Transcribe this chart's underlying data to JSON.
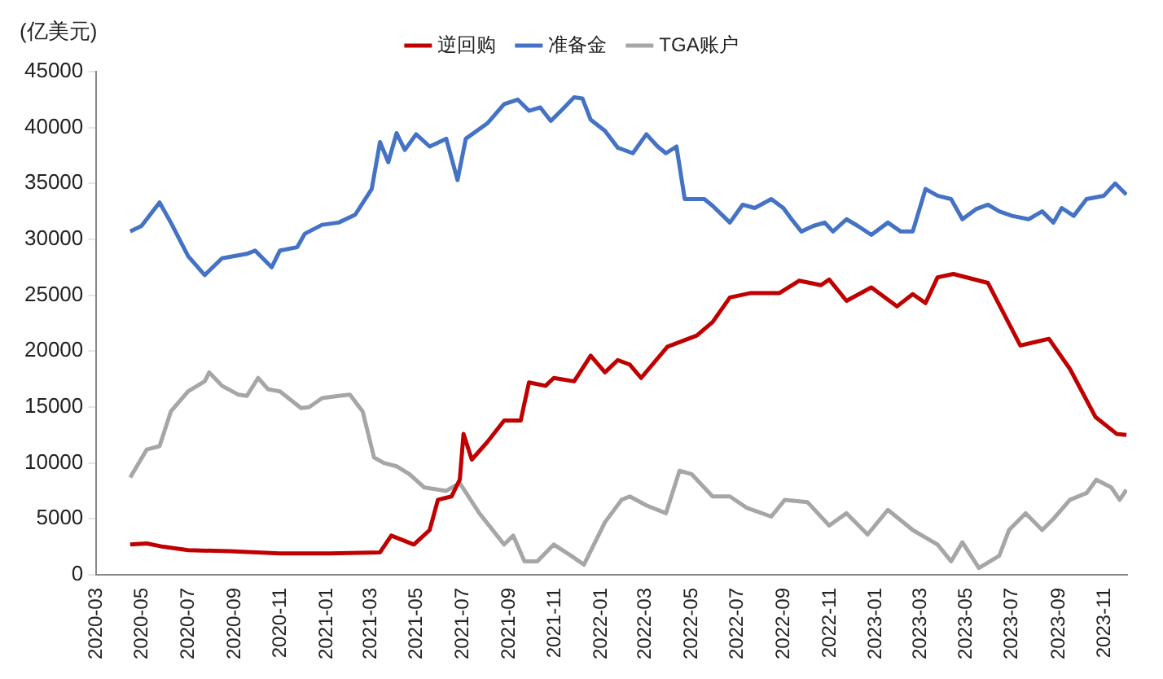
{
  "chart_data": {
    "type": "line",
    "ylabel": "(亿美元)",
    "legend": "top",
    "grid": false,
    "marker": "none",
    "line_style": "solid",
    "xlim": [
      "2020-03",
      "2023-12"
    ],
    "xticks": [
      "2020-03",
      "2020-05",
      "2020-07",
      "2020-09",
      "2020-11",
      "2021-01",
      "2021-03",
      "2021-05",
      "2021-07",
      "2021-09",
      "2021-11",
      "2022-01",
      "2022-03",
      "2022-05",
      "2022-07",
      "2022-09",
      "2022-11",
      "2023-01",
      "2023-03",
      "2023-05",
      "2023-07",
      "2023-09",
      "2023-11"
    ],
    "ylim": [
      0,
      45000
    ],
    "yticks": [
      0,
      5000,
      10000,
      15000,
      20000,
      25000,
      30000,
      35000,
      40000,
      45000
    ],
    "series": [
      {
        "name": "逆回购",
        "color": "#c00000",
        "x": [
          "2020-04-15",
          "2020-05-07",
          "2020-05-29",
          "2020-07-01",
          "2020-08-25",
          "2020-10-31",
          "2021-01-05",
          "2021-03-13",
          "2021-03-28",
          "2021-04-27",
          "2021-05-18",
          "2021-05-29",
          "2021-06-16",
          "2021-06-27",
          "2021-07-02",
          "2021-07-13",
          "2021-08-03",
          "2021-08-25",
          "2021-09-16",
          "2021-09-27",
          "2021-10-19",
          "2021-10-30",
          "2021-11-26",
          "2021-12-18",
          "2022-01-06",
          "2022-01-23",
          "2022-02-08",
          "2022-02-23",
          "2022-03-30",
          "2022-05-08",
          "2022-05-29",
          "2022-06-21",
          "2022-07-19",
          "2022-08-26",
          "2022-09-21",
          "2022-10-20",
          "2022-10-31",
          "2022-11-23",
          "2022-12-26",
          "2023-01-29",
          "2023-02-19",
          "2023-03-08",
          "2023-03-24",
          "2023-04-14",
          "2023-05-30",
          "2023-07-12",
          "2023-08-19",
          "2023-09-16",
          "2023-10-20",
          "2023-11-17",
          "2023-11-30"
        ],
        "values": [
          2700,
          2800,
          2500,
          2200,
          2100,
          1900,
          1900,
          2000,
          3500,
          2700,
          4000,
          6700,
          7000,
          8500,
          12600,
          10300,
          11900,
          13800,
          13800,
          17200,
          16900,
          17600,
          17300,
          19600,
          18100,
          19200,
          18800,
          17600,
          20400,
          21400,
          22600,
          24800,
          25200,
          25200,
          26300,
          25900,
          26400,
          24500,
          25700,
          24000,
          25100,
          24300,
          26600,
          26900,
          26100,
          20500,
          21100,
          18400,
          14100,
          12600,
          12500
        ]
      },
      {
        "name": "准备金",
        "color": "#4472c4",
        "x": [
          "2020-04-15",
          "2020-04-30",
          "2020-05-24",
          "2020-06-08",
          "2020-07-01",
          "2020-07-23",
          "2020-08-15",
          "2020-09-17",
          "2020-09-28",
          "2020-10-20",
          "2020-10-31",
          "2020-11-23",
          "2020-12-03",
          "2020-12-26",
          "2021-01-17",
          "2021-02-08",
          "2021-03-02",
          "2021-03-13",
          "2021-03-24",
          "2021-04-04",
          "2021-04-15",
          "2021-04-30",
          "2021-05-18",
          "2021-06-09",
          "2021-06-24",
          "2021-07-05",
          "2021-08-03",
          "2021-08-25",
          "2021-09-12",
          "2021-09-27",
          "2021-10-12",
          "2021-10-26",
          "2021-11-10",
          "2021-11-26",
          "2021-12-07",
          "2021-12-18",
          "2022-01-06",
          "2022-01-23",
          "2022-02-12",
          "2022-03-02",
          "2022-03-17",
          "2022-03-28",
          "2022-04-11",
          "2022-04-22",
          "2022-05-18",
          "2022-05-29",
          "2022-06-21",
          "2022-07-08",
          "2022-07-24",
          "2022-08-15",
          "2022-08-31",
          "2022-09-11",
          "2022-09-24",
          "2022-10-10",
          "2022-10-25",
          "2022-11-05",
          "2022-11-23",
          "2022-12-08",
          "2022-12-26",
          "2023-01-17",
          "2023-02-03",
          "2023-02-19",
          "2023-03-08",
          "2023-03-24",
          "2023-04-11",
          "2023-04-26",
          "2023-05-14",
          "2023-05-30",
          "2023-06-14",
          "2023-07-01",
          "2023-07-23",
          "2023-08-10",
          "2023-08-25",
          "2023-09-05",
          "2023-09-21",
          "2023-10-08",
          "2023-10-31",
          "2023-11-15",
          "2023-11-30"
        ],
        "values": [
          30700,
          31200,
          33300,
          31500,
          28500,
          26800,
          28300,
          28700,
          29000,
          27500,
          29000,
          29300,
          30500,
          31300,
          31500,
          32200,
          34500,
          38700,
          36900,
          39500,
          38000,
          39400,
          38300,
          39000,
          35300,
          39000,
          40400,
          42100,
          42500,
          41500,
          41800,
          40600,
          41600,
          42700,
          42600,
          40700,
          39700,
          38200,
          37700,
          39400,
          38300,
          37700,
          38300,
          33600,
          33600,
          33000,
          31500,
          33100,
          32800,
          33600,
          32800,
          31800,
          30700,
          31200,
          31500,
          30700,
          31800,
          31200,
          30400,
          31500,
          30700,
          30700,
          34500,
          33900,
          33600,
          31800,
          32700,
          33100,
          32500,
          32100,
          31800,
          32500,
          31500,
          32800,
          32100,
          33600,
          33900,
          35000,
          34000
        ]
      },
      {
        "name": "TGA账户",
        "color": "#a6a6a6",
        "x": [
          "2020-04-15",
          "2020-05-07",
          "2020-05-24",
          "2020-06-08",
          "2020-07-01",
          "2020-07-23",
          "2020-07-29",
          "2020-08-15",
          "2020-09-06",
          "2020-09-17",
          "2020-10-02",
          "2020-10-15",
          "2020-10-31",
          "2020-11-28",
          "2020-12-09",
          "2020-12-26",
          "2021-01-17",
          "2021-02-01",
          "2021-02-18",
          "2021-03-05",
          "2021-03-18",
          "2021-04-04",
          "2021-04-21",
          "2021-05-11",
          "2021-06-09",
          "2021-06-27",
          "2021-07-23",
          "2021-08-25",
          "2021-09-06",
          "2021-09-21",
          "2021-10-08",
          "2021-10-30",
          "2021-11-22",
          "2021-12-09",
          "2022-01-06",
          "2022-01-28",
          "2022-02-08",
          "2022-03-02",
          "2022-03-28",
          "2022-04-15",
          "2022-05-01",
          "2022-05-29",
          "2022-06-21",
          "2022-07-13",
          "2022-08-15",
          "2022-09-02",
          "2022-10-02",
          "2022-10-31",
          "2022-11-23",
          "2022-12-21",
          "2023-01-17",
          "2023-02-19",
          "2023-03-24",
          "2023-04-11",
          "2023-04-26",
          "2023-05-18",
          "2023-06-14",
          "2023-06-27",
          "2023-07-19",
          "2023-08-10",
          "2023-08-25",
          "2023-09-16",
          "2023-10-08",
          "2023-10-21",
          "2023-11-10",
          "2023-11-21",
          "2023-11-30"
        ],
        "values": [
          8700,
          11200,
          11500,
          14600,
          16400,
          17300,
          18100,
          16900,
          16100,
          16000,
          17600,
          16600,
          16400,
          14900,
          15000,
          15800,
          16000,
          16100,
          14600,
          10500,
          10000,
          9700,
          9000,
          7800,
          7500,
          8200,
          5500,
          2700,
          3500,
          1200,
          1200,
          2700,
          1700,
          900,
          4700,
          6700,
          7000,
          6200,
          5500,
          9300,
          9000,
          7000,
          7000,
          6000,
          5200,
          6700,
          6500,
          4400,
          5500,
          3600,
          5800,
          4000,
          2700,
          1200,
          2900,
          600,
          1700,
          4000,
          5500,
          4000,
          5000,
          6700,
          7300,
          8500,
          7800,
          6700,
          7600
        ]
      }
    ]
  }
}
